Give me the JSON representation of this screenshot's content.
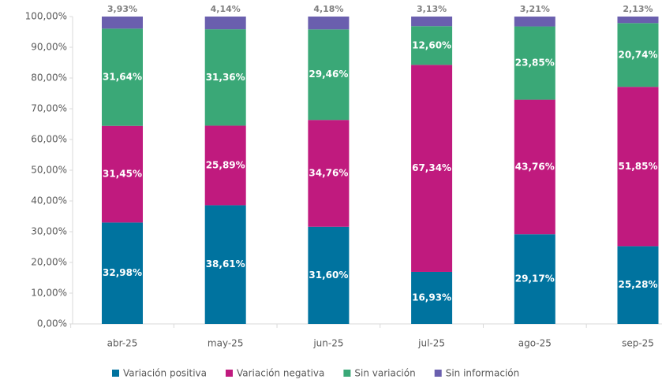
{
  "chart_data": {
    "type": "stacked_bar",
    "categories": [
      "abr-25",
      "may-25",
      "jun-25",
      "jul-25",
      "ago-25",
      "sep-25"
    ],
    "series": [
      {
        "name": "Variación positiva",
        "color": "#00739f",
        "values": [
          32.98,
          38.61,
          31.6,
          16.93,
          29.17,
          25.28
        ],
        "value_labels": [
          "32,98%",
          "38,61%",
          "31,60%",
          "16,93%",
          "29,17%",
          "25,28%"
        ]
      },
      {
        "name": "Variación negativa",
        "color": "#c01a7e",
        "values": [
          31.45,
          25.89,
          34.76,
          67.34,
          43.76,
          51.85
        ],
        "value_labels": [
          "31,45%",
          "25,89%",
          "34,76%",
          "67,34%",
          "43,76%",
          "51,85%"
        ]
      },
      {
        "name": "Sin variación",
        "color": "#3aa877",
        "values": [
          31.64,
          31.36,
          29.46,
          12.6,
          23.85,
          20.74
        ],
        "value_labels": [
          "31,64%",
          "31,36%",
          "29,46%",
          "12,60%",
          "23,85%",
          "20,74%"
        ]
      },
      {
        "name": "Sin información",
        "color": "#6a5fae",
        "values": [
          3.93,
          4.14,
          4.18,
          3.13,
          3.21,
          2.13
        ],
        "value_labels": [
          "3,93%",
          "4,14%",
          "4,18%",
          "3,13%",
          "3,21%",
          "2,13%"
        ]
      }
    ],
    "ylim": [
      0,
      100
    ],
    "yticks": [
      {
        "value": 0,
        "label": "0,00%"
      },
      {
        "value": 10,
        "label": "10,00%"
      },
      {
        "value": 20,
        "label": "20,00%"
      },
      {
        "value": 30,
        "label": "30,00%"
      },
      {
        "value": 40,
        "label": "40,00%"
      },
      {
        "value": 50,
        "label": "50,00%"
      },
      {
        "value": 60,
        "label": "60,00%"
      },
      {
        "value": 70,
        "label": "70,00%"
      },
      {
        "value": 80,
        "label": "80,00%"
      },
      {
        "value": 90,
        "label": "90,00%"
      },
      {
        "value": 100,
        "label": "100,00%"
      }
    ],
    "legend": "bottom"
  }
}
